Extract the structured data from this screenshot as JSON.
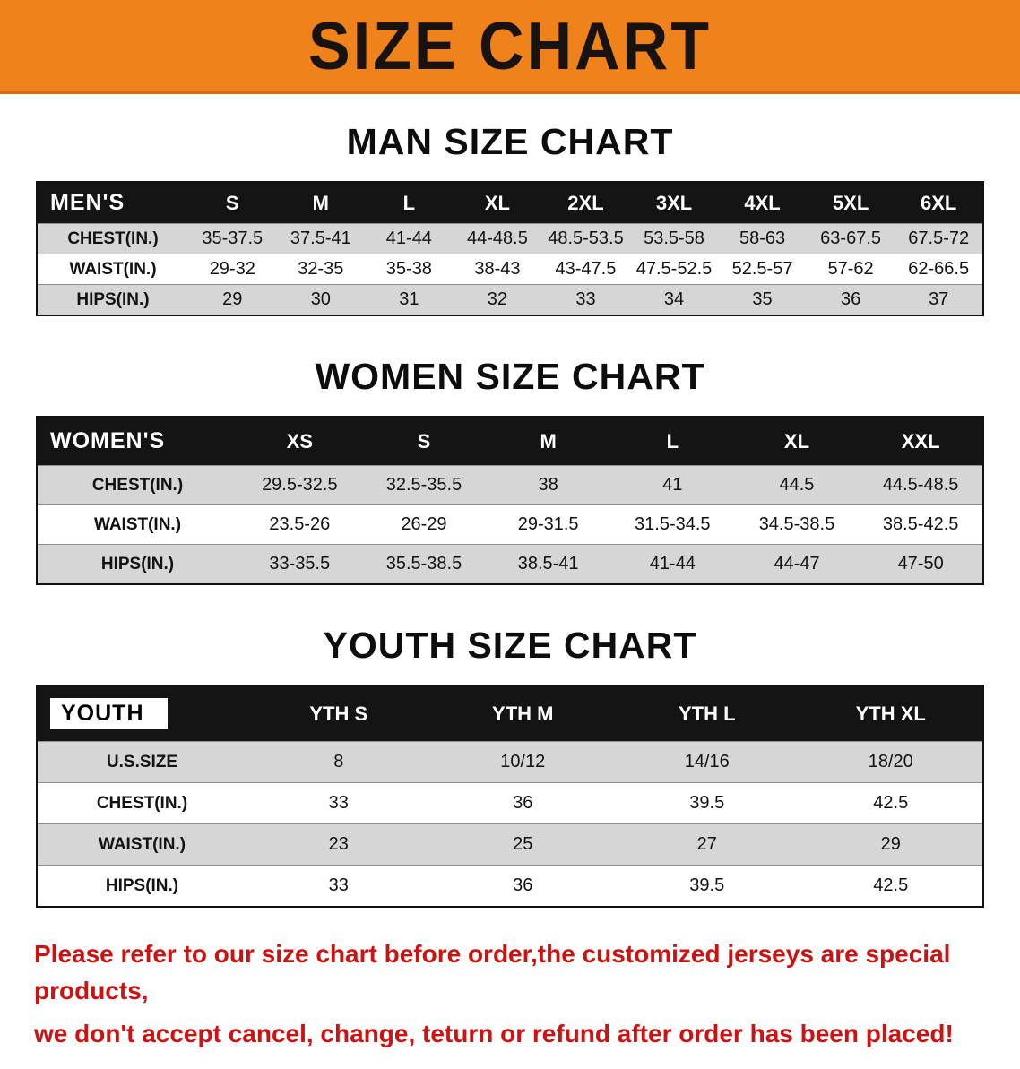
{
  "banner": {
    "title": "SIZE CHART",
    "bg": "#f0821c"
  },
  "sections": [
    {
      "id": "men",
      "heading": "MAN SIZE CHART",
      "corner": "MEN'S",
      "columns": [
        "S",
        "M",
        "L",
        "XL",
        "2XL",
        "3XL",
        "4XL",
        "5XL",
        "6XL"
      ],
      "rows": [
        {
          "label": "CHEST(IN.)",
          "values": [
            "35-37.5",
            "37.5-41",
            "41-44",
            "44-48.5",
            "48.5-53.5",
            "53.5-58",
            "58-63",
            "63-67.5",
            "67.5-72"
          ]
        },
        {
          "label": "WAIST(IN.)",
          "values": [
            "29-32",
            "32-35",
            "35-38",
            "38-43",
            "43-47.5",
            "47.5-52.5",
            "52.5-57",
            "57-62",
            "62-66.5"
          ]
        },
        {
          "label": "HIPS(IN.)",
          "values": [
            "29",
            "30",
            "31",
            "32",
            "33",
            "34",
            "35",
            "36",
            "37"
          ]
        }
      ]
    },
    {
      "id": "women",
      "heading": "WOMEN SIZE CHART",
      "corner": "WOMEN'S",
      "columns": [
        "XS",
        "S",
        "M",
        "L",
        "XL",
        "XXL"
      ],
      "rows": [
        {
          "label": "CHEST(IN.)",
          "values": [
            "29.5-32.5",
            "32.5-35.5",
            "38",
            "41",
            "44.5",
            "44.5-48.5"
          ]
        },
        {
          "label": "WAIST(IN.)",
          "values": [
            "23.5-26",
            "26-29",
            "29-31.5",
            "31.5-34.5",
            "34.5-38.5",
            "38.5-42.5"
          ]
        },
        {
          "label": "HIPS(IN.)",
          "values": [
            "33-35.5",
            "35.5-38.5",
            "38.5-41",
            "41-44",
            "44-47",
            "47-50"
          ]
        }
      ]
    },
    {
      "id": "youth",
      "heading": "YOUTH SIZE CHART",
      "corner": "YOUTH",
      "columns": [
        "YTH S",
        "YTH M",
        "YTH L",
        "YTH XL"
      ],
      "rows": [
        {
          "label": "U.S.SIZE",
          "values": [
            "8",
            "10/12",
            "14/16",
            "18/20"
          ]
        },
        {
          "label": "CHEST(IN.)",
          "values": [
            "33",
            "36",
            "39.5",
            "42.5"
          ]
        },
        {
          "label": "WAIST(IN.)",
          "values": [
            "23",
            "25",
            "27",
            "29"
          ]
        },
        {
          "label": "HIPS(IN.)",
          "values": [
            "33",
            "36",
            "39.5",
            "42.5"
          ]
        }
      ]
    }
  ],
  "disclaimer": {
    "line1": "Please refer to our size chart before order,the customized jerseys are special products,",
    "line2": "we don't accept cancel, change, teturn or refund after order has been placed!",
    "color": "#cd1212"
  }
}
